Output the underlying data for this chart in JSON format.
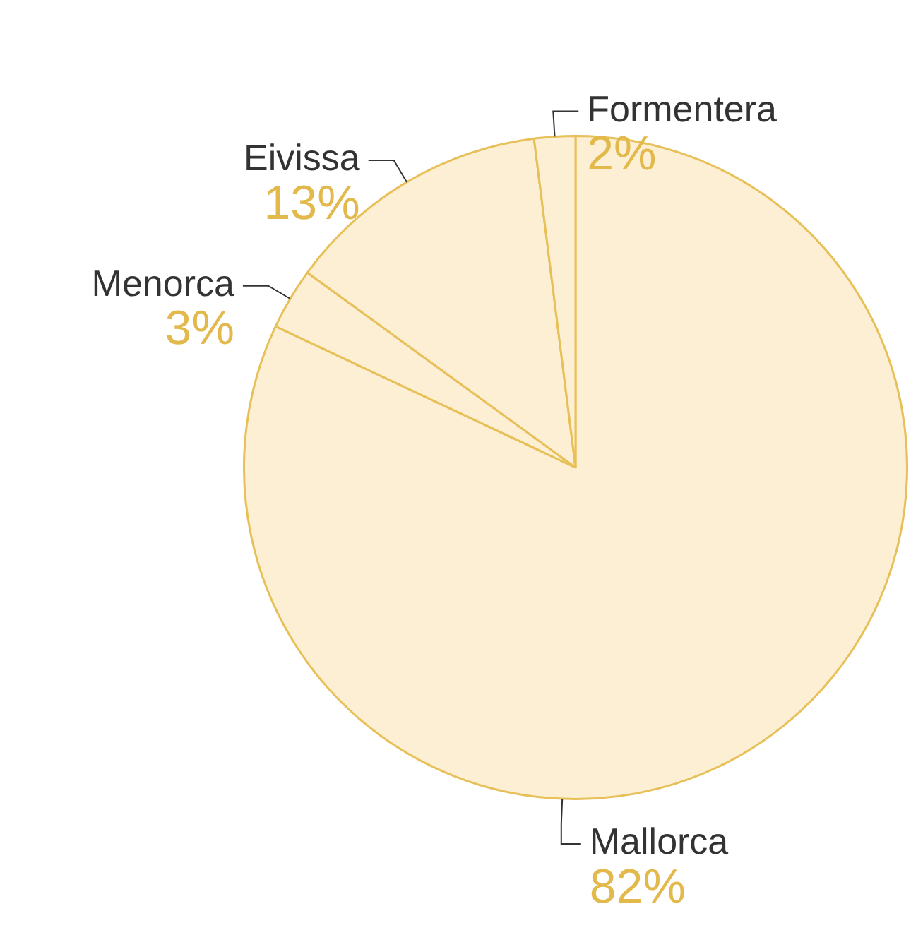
{
  "chart_data": {
    "type": "pie",
    "categories": [
      "Mallorca",
      "Menorca",
      "Eivissa",
      "Formentera"
    ],
    "values": [
      82,
      3,
      13,
      2
    ],
    "value_labels": [
      "82%",
      "3%",
      "13%",
      "2%"
    ],
    "colors": [
      "#fcefd3",
      "#fcefd3",
      "#fcefd3",
      "#fcefd3"
    ],
    "legend": false
  }
}
